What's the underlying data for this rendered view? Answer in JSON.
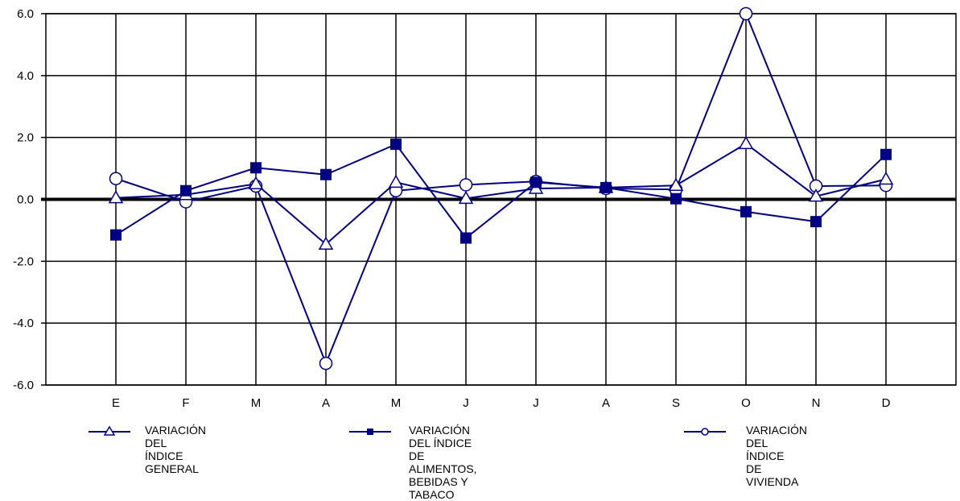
{
  "chart_data": {
    "type": "line",
    "title": "",
    "xlabel": "",
    "ylabel": "",
    "categories": [
      "E",
      "F",
      "M",
      "A",
      "M",
      "J",
      "J",
      "A",
      "S",
      "O",
      "N",
      "D"
    ],
    "ylim": [
      -6.0,
      6.0
    ],
    "yticks": [
      6.0,
      4.0,
      2.0,
      0.0,
      -2.0,
      -4.0,
      -6.0
    ],
    "ytick_labels": [
      "6.0",
      "4.0",
      "2.0",
      "0.0",
      "-2.0",
      "-4.0",
      "-6.0"
    ],
    "grid": true,
    "legend_position": "bottom",
    "colors": {
      "series": "#000080",
      "grid": "#000000",
      "zero_line": "#000000"
    },
    "series": [
      {
        "name": "VARIACIÓN\nDEL ÍNDICE GENERAL",
        "marker": "triangle-open",
        "values": [
          0.05,
          0.15,
          0.5,
          -1.45,
          0.55,
          0.03,
          0.35,
          0.38,
          0.45,
          1.8,
          0.1,
          0.65
        ]
      },
      {
        "name": "VARIACIÓN DEL ÍNDICE DE\nALIMENTOS, BEBIDAS Y TABACO",
        "marker": "square-filled",
        "values": [
          -1.15,
          0.28,
          1.02,
          0.8,
          1.78,
          -1.25,
          0.55,
          0.38,
          0.02,
          -0.4,
          -0.72,
          1.45
        ]
      },
      {
        "name": "VARIACIÓN DEL ÍNDICE\nDE VIVIENDA",
        "marker": "circle-open",
        "values": [
          0.67,
          -0.08,
          0.43,
          -5.3,
          0.28,
          0.47,
          0.58,
          0.35,
          0.32,
          6.0,
          0.43,
          0.45
        ]
      }
    ]
  }
}
